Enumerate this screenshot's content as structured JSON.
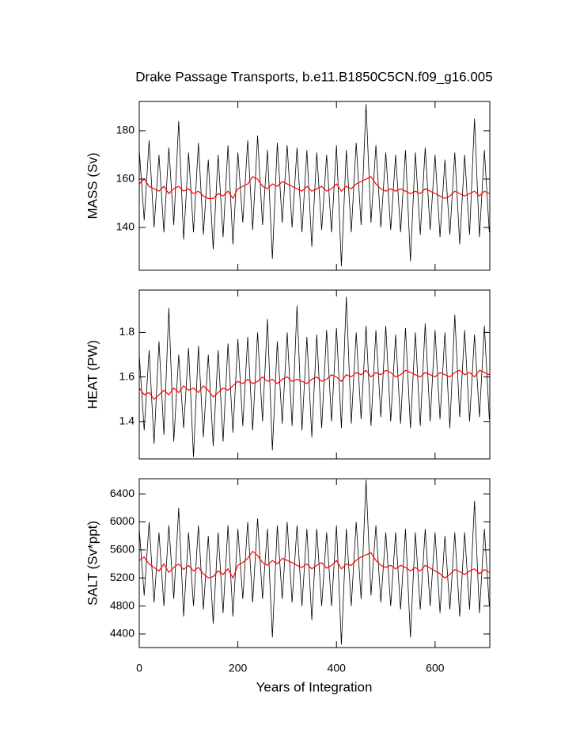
{
  "chart_data": [
    {
      "type": "line",
      "title": "Drake Passage Transports, b.e11.B1850C5CN.f09_g16.005",
      "ylabel": "MASS (Sv)",
      "x": [
        0,
        10,
        20,
        30,
        40,
        50,
        60,
        70,
        80,
        90,
        100,
        110,
        120,
        130,
        140,
        150,
        160,
        170,
        180,
        190,
        200,
        210,
        220,
        230,
        240,
        250,
        260,
        270,
        280,
        290,
        300,
        310,
        320,
        330,
        340,
        350,
        360,
        370,
        380,
        390,
        400,
        410,
        420,
        430,
        440,
        450,
        460,
        470,
        480,
        490,
        500,
        510,
        520,
        530,
        540,
        550,
        560,
        570,
        580,
        590,
        600,
        610,
        620,
        630,
        640,
        650,
        660,
        670,
        680,
        690,
        700,
        710
      ],
      "xlim": [
        0,
        711
      ],
      "ylim": [
        122.3,
        192.1
      ],
      "yticks": [
        140,
        160,
        180
      ],
      "series": [
        {
          "color": "#000000",
          "values": [
            172,
            143,
            176,
            140,
            170,
            138,
            173,
            141,
            184,
            135,
            171,
            138,
            175,
            137,
            168,
            131,
            170,
            136,
            174,
            133,
            171,
            142,
            176,
            139,
            178,
            141,
            172,
            127,
            175,
            142,
            174,
            140,
            173,
            138,
            172,
            132,
            171,
            139,
            170,
            138,
            174,
            124,
            172,
            138,
            175,
            141,
            191,
            142,
            174,
            140,
            171,
            139,
            170,
            138,
            172,
            126,
            171,
            137,
            173,
            139,
            170,
            136,
            168,
            137,
            171,
            133,
            170,
            137,
            185,
            136,
            172,
            138
          ]
        },
        {
          "color": "#ff0000",
          "values": [
            158,
            160,
            157,
            156,
            155,
            157,
            154,
            156,
            157,
            155,
            156,
            154,
            155,
            153,
            152,
            152,
            154,
            153,
            155,
            152,
            156,
            157,
            158,
            161,
            160,
            157,
            156,
            158,
            157,
            159,
            158,
            157,
            156,
            155,
            157,
            155,
            156,
            157,
            155,
            156,
            158,
            155,
            157,
            156,
            158,
            159,
            160,
            161,
            158,
            156,
            155,
            156,
            155,
            156,
            155,
            154,
            155,
            154,
            156,
            155,
            154,
            153,
            152,
            153,
            155,
            154,
            153,
            154,
            155,
            153,
            155,
            154
          ]
        }
      ]
    },
    {
      "type": "line",
      "ylabel": "HEAT (PW)",
      "x": [
        0,
        10,
        20,
        30,
        40,
        50,
        60,
        70,
        80,
        90,
        100,
        110,
        120,
        130,
        140,
        150,
        160,
        170,
        180,
        190,
        200,
        210,
        220,
        230,
        240,
        250,
        260,
        270,
        280,
        290,
        300,
        310,
        320,
        330,
        340,
        350,
        360,
        370,
        380,
        390,
        400,
        410,
        420,
        430,
        440,
        450,
        460,
        470,
        480,
        490,
        500,
        510,
        520,
        530,
        540,
        550,
        560,
        570,
        580,
        590,
        600,
        610,
        620,
        630,
        640,
        650,
        660,
        670,
        680,
        690,
        700,
        710
      ],
      "xlim": [
        0,
        711
      ],
      "ylim": [
        1.232,
        1.99
      ],
      "yticks": [
        1.4,
        1.6,
        1.8
      ],
      "series": [
        {
          "color": "#000000",
          "values": [
            1.7,
            1.36,
            1.72,
            1.3,
            1.76,
            1.34,
            1.91,
            1.31,
            1.7,
            1.37,
            1.73,
            1.24,
            1.74,
            1.33,
            1.7,
            1.29,
            1.72,
            1.31,
            1.75,
            1.35,
            1.77,
            1.38,
            1.78,
            1.36,
            1.8,
            1.4,
            1.86,
            1.27,
            1.76,
            1.39,
            1.8,
            1.38,
            1.92,
            1.36,
            1.78,
            1.33,
            1.79,
            1.37,
            1.81,
            1.4,
            1.82,
            1.37,
            1.96,
            1.39,
            1.8,
            1.41,
            1.83,
            1.38,
            1.81,
            1.42,
            1.83,
            1.4,
            1.79,
            1.39,
            1.82,
            1.37,
            1.8,
            1.38,
            1.84,
            1.4,
            1.81,
            1.41,
            1.8,
            1.37,
            1.88,
            1.42,
            1.81,
            1.4,
            1.79,
            1.42,
            1.83,
            1.41
          ]
        },
        {
          "color": "#ff0000",
          "values": [
            1.55,
            1.52,
            1.53,
            1.5,
            1.52,
            1.54,
            1.52,
            1.55,
            1.53,
            1.56,
            1.54,
            1.55,
            1.53,
            1.56,
            1.54,
            1.51,
            1.53,
            1.55,
            1.54,
            1.56,
            1.58,
            1.57,
            1.59,
            1.57,
            1.58,
            1.6,
            1.58,
            1.59,
            1.57,
            1.59,
            1.6,
            1.58,
            1.59,
            1.58,
            1.57,
            1.59,
            1.6,
            1.58,
            1.59,
            1.61,
            1.6,
            1.58,
            1.61,
            1.6,
            1.62,
            1.61,
            1.63,
            1.6,
            1.62,
            1.61,
            1.63,
            1.62,
            1.6,
            1.61,
            1.63,
            1.62,
            1.61,
            1.6,
            1.62,
            1.61,
            1.6,
            1.62,
            1.61,
            1.6,
            1.62,
            1.63,
            1.61,
            1.62,
            1.6,
            1.63,
            1.62,
            1.61
          ]
        }
      ]
    },
    {
      "type": "line",
      "ylabel": "SALT (Sv*ppt)",
      "xlabel": "Years of Integration",
      "x": [
        0,
        10,
        20,
        30,
        40,
        50,
        60,
        70,
        80,
        90,
        100,
        110,
        120,
        130,
        140,
        150,
        160,
        170,
        180,
        190,
        200,
        210,
        220,
        230,
        240,
        250,
        260,
        270,
        280,
        290,
        300,
        310,
        320,
        330,
        340,
        350,
        360,
        370,
        380,
        390,
        400,
        410,
        420,
        430,
        440,
        450,
        460,
        470,
        480,
        490,
        500,
        510,
        520,
        530,
        540,
        550,
        560,
        570,
        580,
        590,
        600,
        610,
        620,
        630,
        640,
        650,
        660,
        670,
        680,
        690,
        700,
        710
      ],
      "xlim": [
        0,
        711
      ],
      "xticks": [
        0,
        200,
        400,
        600
      ],
      "ylim": [
        4207,
        6616
      ],
      "yticks": [
        4400,
        4800,
        5200,
        5600,
        6000,
        6400
      ],
      "series": [
        {
          "color": "#000000",
          "values": [
            5900,
            4950,
            6000,
            4850,
            5850,
            4800,
            5950,
            4900,
            6200,
            4650,
            5850,
            4800,
            5950,
            4750,
            5800,
            4550,
            5850,
            4700,
            5950,
            4650,
            5900,
            4900,
            6000,
            4850,
            6050,
            4900,
            5900,
            4350,
            5950,
            4900,
            6000,
            4850,
            5950,
            4800,
            5900,
            4600,
            5900,
            4800,
            5850,
            4800,
            5950,
            4250,
            5900,
            4800,
            6000,
            4900,
            6600,
            4950,
            5950,
            4850,
            5850,
            4800,
            5850,
            4750,
            5900,
            4350,
            5850,
            4750,
            5900,
            4800,
            5850,
            4700,
            5800,
            4750,
            5850,
            4650,
            5850,
            4750,
            6300,
            4700,
            5900,
            4800
          ]
        },
        {
          "color": "#ff0000",
          "values": [
            5450,
            5500,
            5400,
            5350,
            5300,
            5400,
            5280,
            5350,
            5400,
            5320,
            5380,
            5300,
            5350,
            5260,
            5200,
            5220,
            5300,
            5250,
            5330,
            5200,
            5380,
            5420,
            5480,
            5580,
            5520,
            5420,
            5380,
            5450,
            5400,
            5480,
            5450,
            5420,
            5380,
            5350,
            5400,
            5330,
            5380,
            5420,
            5340,
            5380,
            5450,
            5330,
            5400,
            5380,
            5450,
            5500,
            5530,
            5560,
            5450,
            5380,
            5350,
            5380,
            5330,
            5380,
            5350,
            5300,
            5350,
            5300,
            5380,
            5340,
            5300,
            5260,
            5200,
            5250,
            5320,
            5290,
            5250,
            5300,
            5330,
            5260,
            5320,
            5280
          ]
        }
      ]
    }
  ]
}
